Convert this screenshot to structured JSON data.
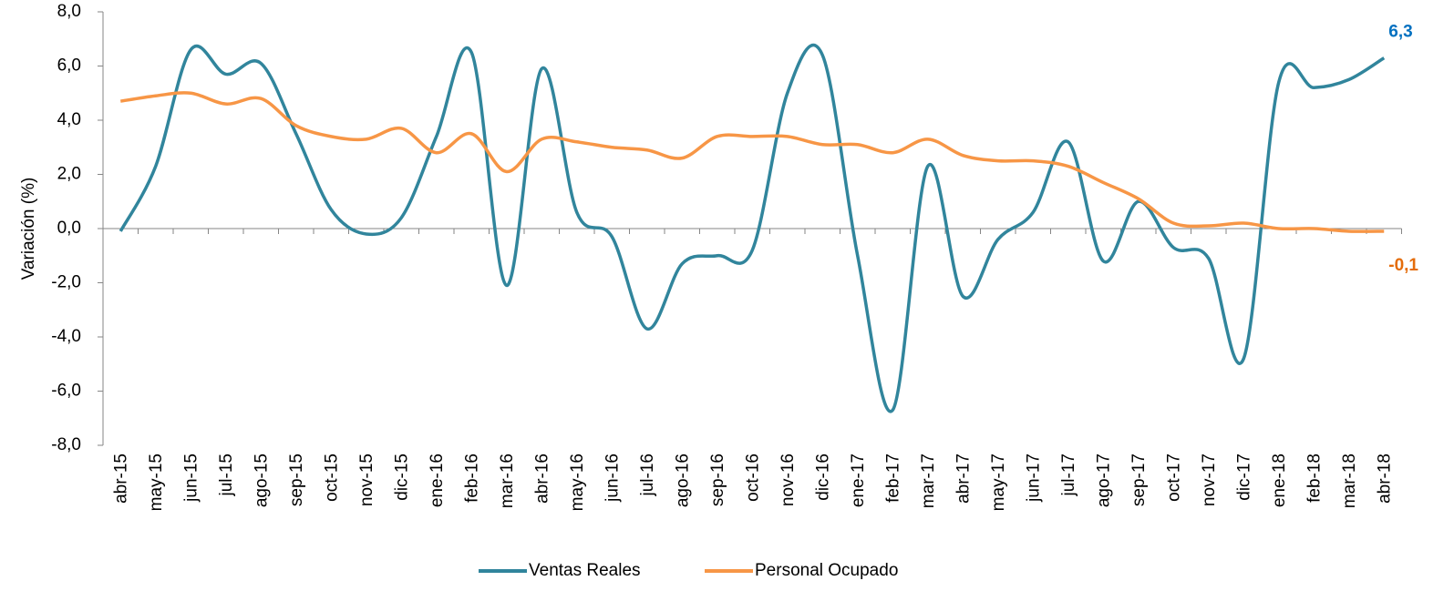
{
  "chart_data": {
    "type": "line",
    "y_label": "Variación (%)",
    "categories": [
      "abr-15",
      "may-15",
      "jun-15",
      "jul-15",
      "ago-15",
      "sep-15",
      "oct-15",
      "nov-15",
      "dic-15",
      "ene-16",
      "feb-16",
      "mar-16",
      "abr-16",
      "may-16",
      "jun-16",
      "jul-16",
      "ago-16",
      "sep-16",
      "oct-16",
      "nov-16",
      "dic-16",
      "ene-17",
      "feb-17",
      "mar-17",
      "abr-17",
      "may-17",
      "jun-17",
      "jul-17",
      "ago-17",
      "sep-17",
      "oct-17",
      "nov-17",
      "dic-17",
      "ene-18",
      "feb-18",
      "mar-18",
      "abr-18"
    ],
    "series": [
      {
        "name": "Ventas Reales",
        "color": "#31859c",
        "label_color": "#0070c0",
        "values": [
          -0.1,
          2.3,
          6.6,
          5.7,
          6.1,
          3.5,
          0.7,
          -0.2,
          0.4,
          3.4,
          6.5,
          -2.1,
          5.9,
          0.6,
          -0.3,
          -3.7,
          -1.3,
          -1.0,
          -0.8,
          5.0,
          6.4,
          -1.0,
          -6.7,
          2.3,
          -2.5,
          -0.4,
          0.6,
          3.2,
          -1.2,
          1.0,
          -0.7,
          -1.1,
          -4.8,
          5.4,
          5.2,
          5.5,
          6.3
        ],
        "value_labels": [
          null,
          null,
          null,
          null,
          null,
          null,
          null,
          null,
          null,
          null,
          null,
          null,
          null,
          null,
          null,
          null,
          null,
          null,
          null,
          null,
          null,
          null,
          null,
          null,
          null,
          null,
          null,
          null,
          null,
          null,
          null,
          null,
          null,
          null,
          null,
          null,
          "6,3"
        ]
      },
      {
        "name": "Personal Ocupado",
        "color": "#f79646",
        "label_color": "#e46c0a",
        "values": [
          4.7,
          4.9,
          5.0,
          4.6,
          4.8,
          3.8,
          3.4,
          3.3,
          3.7,
          2.8,
          3.5,
          2.1,
          3.3,
          3.2,
          3.0,
          2.9,
          2.6,
          3.4,
          3.4,
          3.4,
          3.1,
          3.1,
          2.8,
          3.3,
          2.7,
          2.5,
          2.5,
          2.3,
          1.7,
          1.1,
          0.2,
          0.1,
          0.2,
          0.0,
          0.0,
          -0.1,
          -0.1
        ],
        "value_labels": [
          null,
          null,
          null,
          null,
          null,
          null,
          null,
          null,
          null,
          null,
          null,
          null,
          null,
          null,
          null,
          null,
          null,
          null,
          null,
          null,
          null,
          null,
          null,
          null,
          null,
          null,
          null,
          null,
          null,
          null,
          null,
          null,
          null,
          null,
          null,
          null,
          "-0,1"
        ]
      }
    ],
    "ylim": [
      -8,
      8
    ],
    "yticks": [
      {
        "value": -8,
        "label": "-8,0"
      },
      {
        "value": -6,
        "label": "-6,0"
      },
      {
        "value": -4,
        "label": "-4,0"
      },
      {
        "value": -2,
        "label": "-2,0"
      },
      {
        "value": 0,
        "label": "0,0"
      },
      {
        "value": 2,
        "label": "2,0"
      },
      {
        "value": 4,
        "label": "4,0"
      },
      {
        "value": 6,
        "label": "6,0"
      },
      {
        "value": 8,
        "label": "8,0"
      }
    ],
    "smooth": true,
    "legend": "bottom"
  }
}
